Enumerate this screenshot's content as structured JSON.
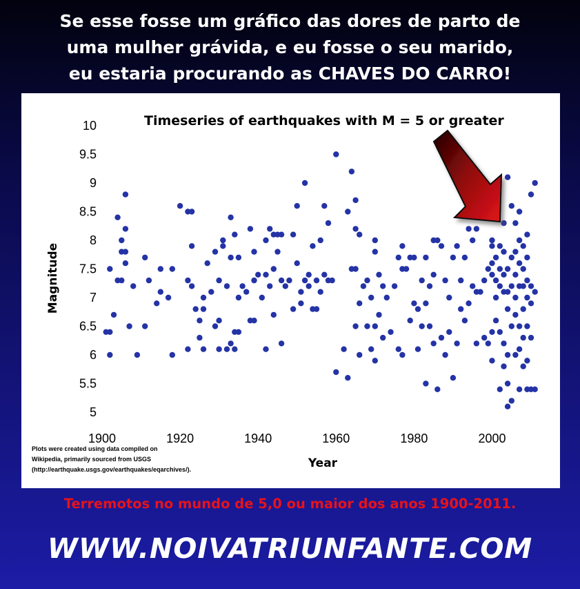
{
  "headline": {
    "line1": "Se esse fosse um gráfico das dores de parto de",
    "line2": "uma mulher grávida, e eu fosse o seu marido,",
    "line3": "eu estaria procurando as CHAVES DO CARRO!"
  },
  "chart_data": {
    "type": "scatter",
    "title": "Timeseries of earthquakes with M = 5 or greater",
    "xlabel": "Year",
    "ylabel": "Magnitude",
    "xlim": [
      1900,
      2011
    ],
    "ylim": [
      5,
      10
    ],
    "x_ticks": [
      "1900",
      "1920",
      "1940",
      "1960",
      "1980",
      "2000"
    ],
    "y_ticks": [
      "5",
      "5.5",
      "6",
      "6.5",
      "7",
      "7.5",
      "8",
      "8.5",
      "9",
      "9.5",
      "10"
    ],
    "grid": false,
    "legend": "none",
    "point_color": "#2433a5",
    "points": [
      [
        1901,
        6.4
      ],
      [
        1902,
        6.4
      ],
      [
        1902,
        7.5
      ],
      [
        1902,
        6.0
      ],
      [
        1903,
        6.7
      ],
      [
        1904,
        7.3
      ],
      [
        1904,
        8.4
      ],
      [
        1905,
        7.3
      ],
      [
        1905,
        8.0
      ],
      [
        1905,
        7.8
      ],
      [
        1906,
        8.8
      ],
      [
        1906,
        8.2
      ],
      [
        1906,
        7.8
      ],
      [
        1906,
        7.6
      ],
      [
        1907,
        6.5
      ],
      [
        1908,
        7.2
      ],
      [
        1909,
        6.0
      ],
      [
        1911,
        7.7
      ],
      [
        1911,
        6.5
      ],
      [
        1912,
        7.3
      ],
      [
        1914,
        6.9
      ],
      [
        1915,
        7.5
      ],
      [
        1915,
        7.1
      ],
      [
        1917,
        7.0
      ],
      [
        1918,
        7.5
      ],
      [
        1918,
        6.0
      ],
      [
        1920,
        8.6
      ],
      [
        1922,
        8.5
      ],
      [
        1922,
        7.3
      ],
      [
        1922,
        6.1
      ],
      [
        1923,
        8.5
      ],
      [
        1923,
        7.9
      ],
      [
        1923,
        7.2
      ],
      [
        1924,
        6.8
      ],
      [
        1925,
        6.6
      ],
      [
        1925,
        6.3
      ],
      [
        1926,
        6.8
      ],
      [
        1926,
        7.0
      ],
      [
        1926,
        6.1
      ],
      [
        1927,
        7.6
      ],
      [
        1928,
        7.1
      ],
      [
        1929,
        6.5
      ],
      [
        1929,
        7.8
      ],
      [
        1930,
        7.3
      ],
      [
        1930,
        6.1
      ],
      [
        1930,
        6.6
      ],
      [
        1931,
        7.9
      ],
      [
        1931,
        8.0
      ],
      [
        1932,
        6.1
      ],
      [
        1932,
        7.2
      ],
      [
        1933,
        8.4
      ],
      [
        1933,
        7.7
      ],
      [
        1933,
        6.2
      ],
      [
        1934,
        6.1
      ],
      [
        1934,
        6.4
      ],
      [
        1934,
        8.1
      ],
      [
        1935,
        7.7
      ],
      [
        1935,
        6.4
      ],
      [
        1935,
        7.0
      ],
      [
        1936,
        7.2
      ],
      [
        1937,
        7.1
      ],
      [
        1938,
        8.2
      ],
      [
        1938,
        6.6
      ],
      [
        1939,
        7.8
      ],
      [
        1939,
        6.6
      ],
      [
        1939,
        7.3
      ],
      [
        1940,
        7.4
      ],
      [
        1941,
        7.0
      ],
      [
        1942,
        8.0
      ],
      [
        1942,
        6.1
      ],
      [
        1942,
        7.4
      ],
      [
        1943,
        8.2
      ],
      [
        1943,
        7.2
      ],
      [
        1944,
        8.1
      ],
      [
        1944,
        7.5
      ],
      [
        1944,
        6.7
      ],
      [
        1945,
        8.1
      ],
      [
        1945,
        7.8
      ],
      [
        1946,
        8.1
      ],
      [
        1946,
        7.3
      ],
      [
        1946,
        6.2
      ],
      [
        1947,
        7.2
      ],
      [
        1948,
        7.3
      ],
      [
        1949,
        8.1
      ],
      [
        1949,
        6.8
      ],
      [
        1950,
        8.6
      ],
      [
        1950,
        7.6
      ],
      [
        1951,
        7.1
      ],
      [
        1951,
        6.9
      ],
      [
        1952,
        9.0
      ],
      [
        1952,
        7.3
      ],
      [
        1953,
        7.4
      ],
      [
        1953,
        7.2
      ],
      [
        1954,
        6.8
      ],
      [
        1954,
        7.9
      ],
      [
        1955,
        7.3
      ],
      [
        1955,
        6.8
      ],
      [
        1956,
        7.1
      ],
      [
        1956,
        8.0
      ],
      [
        1957,
        8.6
      ],
      [
        1957,
        7.4
      ],
      [
        1958,
        8.3
      ],
      [
        1958,
        7.3
      ],
      [
        1959,
        7.3
      ],
      [
        1960,
        9.5
      ],
      [
        1960,
        5.7
      ],
      [
        1962,
        6.1
      ],
      [
        1963,
        8.5
      ],
      [
        1963,
        5.6
      ],
      [
        1964,
        9.2
      ],
      [
        1964,
        7.5
      ],
      [
        1965,
        8.7
      ],
      [
        1965,
        7.5
      ],
      [
        1965,
        6.5
      ],
      [
        1965,
        8.2
      ],
      [
        1966,
        8.1
      ],
      [
        1966,
        6.9
      ],
      [
        1966,
        6.0
      ],
      [
        1967,
        7.2
      ],
      [
        1968,
        7.3
      ],
      [
        1968,
        6.5
      ],
      [
        1969,
        7.0
      ],
      [
        1969,
        6.1
      ],
      [
        1970,
        7.8
      ],
      [
        1970,
        6.5
      ],
      [
        1970,
        5.9
      ],
      [
        1970,
        8.0
      ],
      [
        1971,
        7.4
      ],
      [
        1971,
        6.7
      ],
      [
        1972,
        7.2
      ],
      [
        1972,
        6.3
      ],
      [
        1973,
        7.0
      ],
      [
        1974,
        6.4
      ],
      [
        1975,
        7.2
      ],
      [
        1976,
        7.7
      ],
      [
        1976,
        6.1
      ],
      [
        1977,
        7.9
      ],
      [
        1977,
        7.5
      ],
      [
        1977,
        6.0
      ],
      [
        1978,
        7.5
      ],
      [
        1979,
        7.7
      ],
      [
        1979,
        6.6
      ],
      [
        1980,
        7.7
      ],
      [
        1980,
        6.9
      ],
      [
        1981,
        6.8
      ],
      [
        1981,
        6.1
      ],
      [
        1982,
        7.3
      ],
      [
        1982,
        6.5
      ],
      [
        1983,
        7.7
      ],
      [
        1983,
        5.5
      ],
      [
        1983,
        6.9
      ],
      [
        1984,
        7.2
      ],
      [
        1984,
        6.5
      ],
      [
        1985,
        8.0
      ],
      [
        1985,
        6.2
      ],
      [
        1985,
        7.4
      ],
      [
        1986,
        8.0
      ],
      [
        1986,
        5.4
      ],
      [
        1987,
        7.9
      ],
      [
        1987,
        6.3
      ],
      [
        1988,
        6.0
      ],
      [
        1988,
        7.3
      ],
      [
        1989,
        7.0
      ],
      [
        1989,
        6.4
      ],
      [
        1990,
        7.7
      ],
      [
        1990,
        5.6
      ],
      [
        1991,
        7.9
      ],
      [
        1991,
        6.2
      ],
      [
        1992,
        7.3
      ],
      [
        1992,
        6.8
      ],
      [
        1993,
        7.7
      ],
      [
        1993,
        6.6
      ],
      [
        1994,
        8.2
      ],
      [
        1994,
        6.9
      ],
      [
        1995,
        8.0
      ],
      [
        1995,
        7.2
      ],
      [
        1996,
        8.2
      ],
      [
        1996,
        7.1
      ],
      [
        1996,
        6.2
      ],
      [
        1997,
        7.1
      ],
      [
        1998,
        7.3
      ],
      [
        1998,
        6.3
      ],
      [
        1999,
        7.5
      ],
      [
        1999,
        6.2
      ],
      [
        2000,
        7.9
      ],
      [
        2000,
        8.0
      ],
      [
        2000,
        7.4
      ],
      [
        2000,
        7.6
      ],
      [
        2000,
        6.4
      ],
      [
        2000,
        5.9
      ],
      [
        2001,
        8.4
      ],
      [
        2001,
        7.7
      ],
      [
        2001,
        7.3
      ],
      [
        2001,
        7.0
      ],
      [
        2001,
        6.6
      ],
      [
        2002,
        7.9
      ],
      [
        2002,
        7.5
      ],
      [
        2002,
        7.2
      ],
      [
        2002,
        6.4
      ],
      [
        2002,
        5.4
      ],
      [
        2003,
        8.3
      ],
      [
        2003,
        7.8
      ],
      [
        2003,
        7.4
      ],
      [
        2003,
        7.1
      ],
      [
        2003,
        6.2
      ],
      [
        2003,
        5.8
      ],
      [
        2004,
        9.1
      ],
      [
        2004,
        7.5
      ],
      [
        2004,
        7.1
      ],
      [
        2004,
        6.8
      ],
      [
        2004,
        6.0
      ],
      [
        2004,
        5.5
      ],
      [
        2004,
        5.1
      ],
      [
        2005,
        8.6
      ],
      [
        2005,
        7.7
      ],
      [
        2005,
        7.2
      ],
      [
        2005,
        6.5
      ],
      [
        2005,
        5.2
      ],
      [
        2006,
        8.3
      ],
      [
        2006,
        7.8
      ],
      [
        2006,
        7.4
      ],
      [
        2006,
        7.0
      ],
      [
        2006,
        6.7
      ],
      [
        2006,
        6.0
      ],
      [
        2007,
        8.5
      ],
      [
        2007,
        8.0
      ],
      [
        2007,
        7.6
      ],
      [
        2007,
        7.2
      ],
      [
        2007,
        6.5
      ],
      [
        2007,
        6.1
      ],
      [
        2007,
        5.4
      ],
      [
        2008,
        7.9
      ],
      [
        2008,
        7.5
      ],
      [
        2008,
        7.2
      ],
      [
        2008,
        6.8
      ],
      [
        2008,
        6.3
      ],
      [
        2008,
        5.8
      ],
      [
        2009,
        8.1
      ],
      [
        2009,
        7.7
      ],
      [
        2009,
        7.3
      ],
      [
        2009,
        7.0
      ],
      [
        2009,
        6.5
      ],
      [
        2009,
        5.9
      ],
      [
        2009,
        5.4
      ],
      [
        2010,
        8.8
      ],
      [
        2010,
        7.2
      ],
      [
        2010,
        6.9
      ],
      [
        2010,
        6.3
      ],
      [
        2010,
        5.4
      ],
      [
        2011,
        9.0
      ],
      [
        2011,
        7.1
      ],
      [
        2011,
        5.4
      ]
    ]
  },
  "arrow_color": "#e0141a",
  "source_note": {
    "line1": "Plots were created using data compiled on",
    "line2": "Wikipedia, primarily sourced from USGS",
    "line3": "(http://earthquake.usgs.gov/earthquakes/eqarchives/)."
  },
  "caption": "Terremotos no mundo de 5,0 ou maior dos anos  1900-2011.",
  "website": "WWW.NOIVATRIUNFANTE.COM"
}
